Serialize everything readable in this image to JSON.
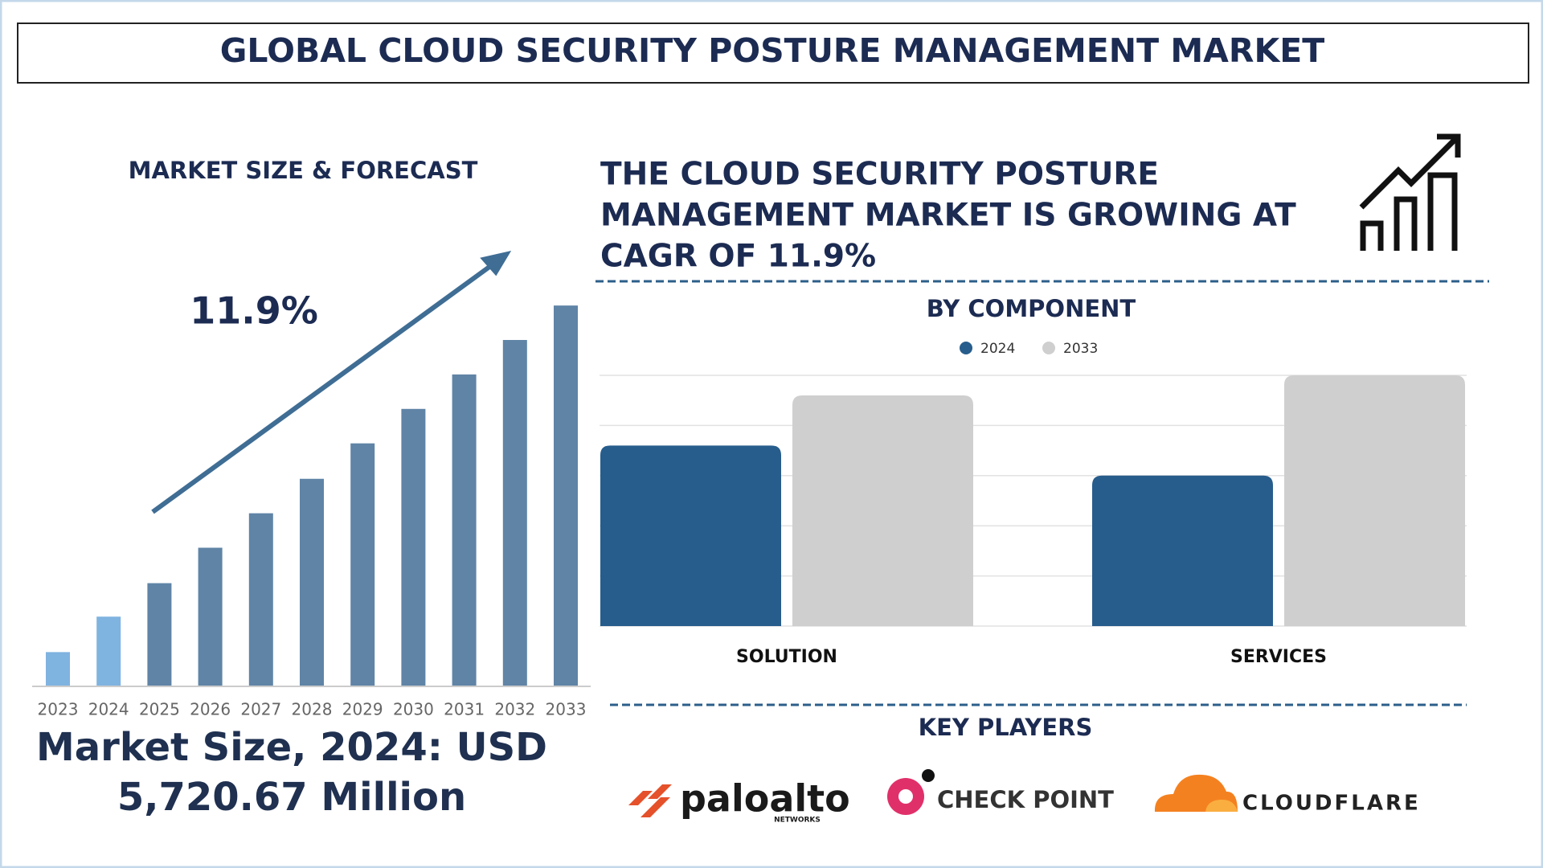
{
  "header": {
    "title": "GLOBAL CLOUD SECURITY POSTURE MANAGEMENT MARKET"
  },
  "chart_data": [
    {
      "type": "bar",
      "title": "MARKET SIZE & FORECAST",
      "annotation": "11.9%",
      "categories": [
        "2023",
        "2024",
        "2025",
        "2026",
        "2027",
        "2028",
        "2029",
        "2030",
        "2031",
        "2032",
        "2033"
      ],
      "values": [
        34,
        70,
        104,
        140,
        175,
        210,
        246,
        281,
        316,
        351,
        386
      ],
      "colors": [
        "#7fb3e0",
        "#7fb3e0",
        "#5f84a6",
        "#5f84a6",
        "#5f84a6",
        "#5f84a6",
        "#5f84a6",
        "#5f84a6",
        "#5f84a6",
        "#5f84a6",
        "#5f84a6"
      ],
      "ylim": [
        0,
        400
      ],
      "footer": [
        "Market Size, 2024: USD",
        "5,720.67 Million"
      ]
    },
    {
      "type": "grouped_bar",
      "title": "BY COMPONENT",
      "categories": [
        "SOLUTION",
        "SERVICES"
      ],
      "series": [
        {
          "name": "2024",
          "color": "#275d8c",
          "values": [
            3.6,
            3.0
          ]
        },
        {
          "name": "2033",
          "color": "#cfcfcf",
          "values": [
            4.6,
            5.0
          ]
        }
      ],
      "ylim": [
        0,
        5
      ],
      "yticks": [
        0,
        1,
        2,
        3,
        4,
        5
      ],
      "grid": true
    }
  ],
  "headline": [
    "THE CLOUD SECURITY POSTURE",
    "MANAGEMENT MARKET IS GROWING AT",
    "CAGR OF 11.9%"
  ],
  "key_players": {
    "title": "KEY PLAYERS",
    "players": [
      {
        "name": "paloalto",
        "subtitle": "NETWORKS"
      },
      {
        "name": "CHECK POINT"
      },
      {
        "name": "CLOUDFLARE"
      }
    ]
  }
}
